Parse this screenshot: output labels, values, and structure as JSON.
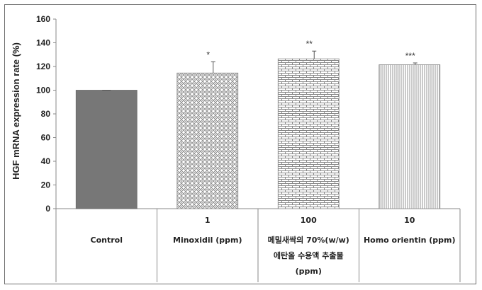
{
  "chart_data": {
    "type": "bar",
    "ylabel": "HGF mRNA expression rate (%)",
    "ylim": [
      0,
      160
    ],
    "yticks": [
      "0",
      "20",
      "40",
      "60",
      "80",
      "100",
      "120",
      "140",
      "160"
    ],
    "grid": false,
    "legend": "none",
    "categories": [
      {
        "dose": "",
        "lines": [
          "Control"
        ]
      },
      {
        "dose": "1",
        "lines": [
          "Minoxidil (ppm)"
        ]
      },
      {
        "dose": "100",
        "lines": [
          "메밀새싹의 70%(w/w)",
          "에탄올 수용액 추출물",
          "(ppm)"
        ]
      },
      {
        "dose": "10",
        "lines": [
          "Homo orientin (ppm)"
        ]
      }
    ],
    "values": [
      100,
      114.5,
      126.5,
      121.5
    ],
    "error": [
      0,
      9.5,
      6.5,
      1.5
    ],
    "significance": [
      "",
      "*",
      "**",
      "***"
    ],
    "patterns": [
      "solid-gray",
      "diamond-lattice",
      "brick",
      "vertical-lines"
    ],
    "colors": {
      "bar_fill": "#777777",
      "pattern_ink": "#888888",
      "axis": "#8a8a8a",
      "text": "#222222"
    }
  }
}
